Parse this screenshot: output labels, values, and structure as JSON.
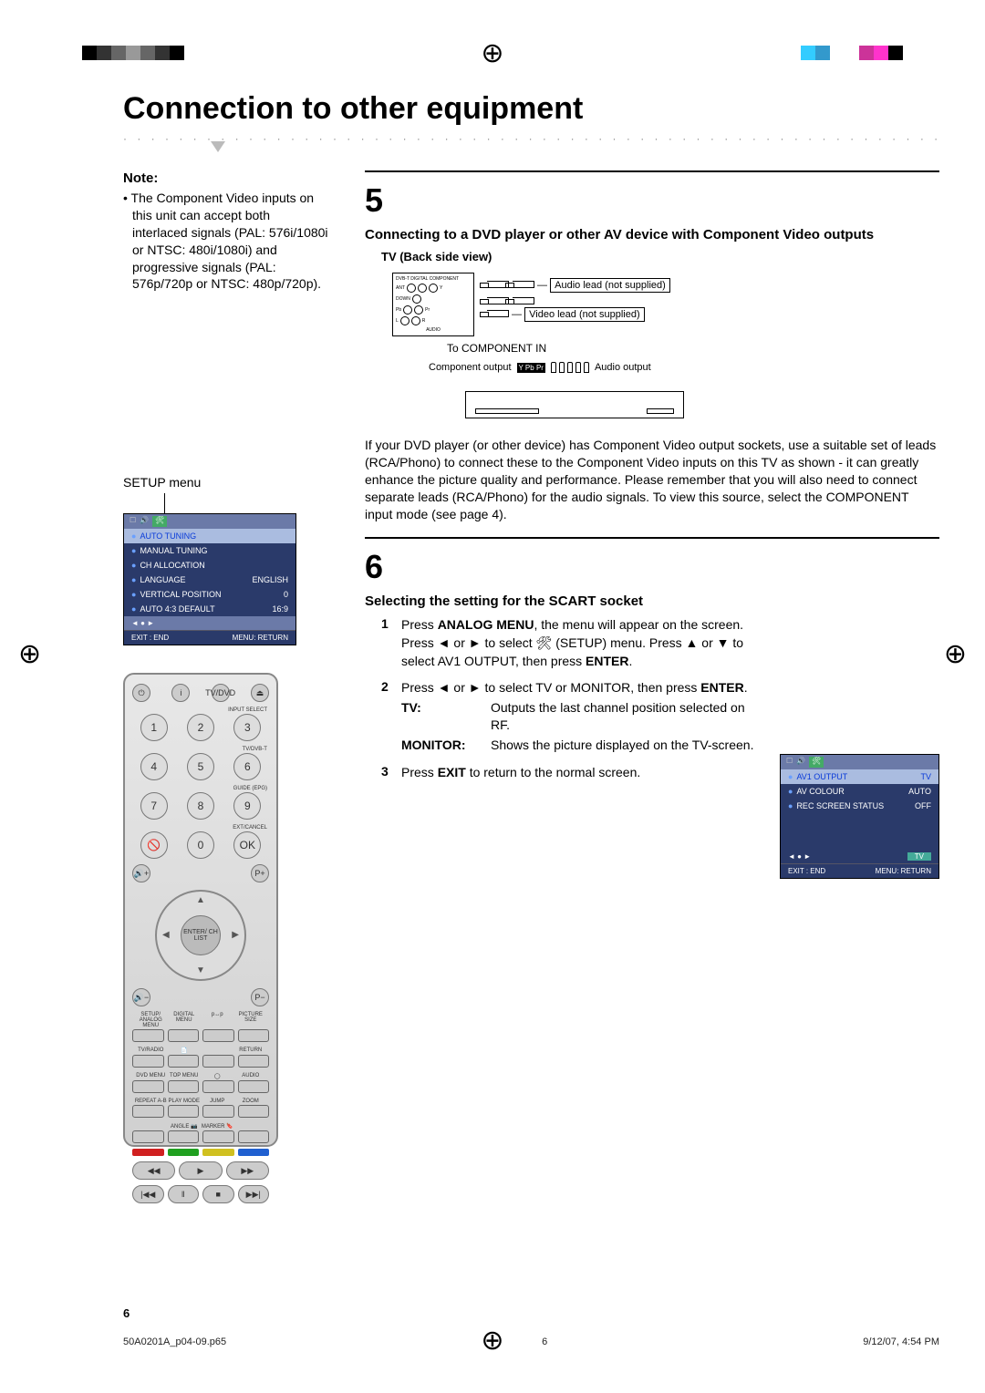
{
  "title": "Connection to other equipment",
  "note_head": "Note:",
  "note_body": "• The Component Video inputs on this unit can accept both interlaced signals (PAL: 576i/1080i or NTSC: 480i/1080i) and progressive signals (PAL: 576p/720p or NTSC: 480p/720p).",
  "setup_label": "SETUP menu",
  "osd1": {
    "items": [
      {
        "label": "AUTO TUNING",
        "val": ""
      },
      {
        "label": "MANUAL TUNING",
        "val": ""
      },
      {
        "label": "CH ALLOCATION",
        "val": ""
      },
      {
        "label": "LANGUAGE",
        "val": "ENGLISH"
      },
      {
        "label": "VERTICAL POSITION",
        "val": "0"
      },
      {
        "label": "AUTO 4:3 DEFAULT",
        "val": "16:9"
      }
    ],
    "ctrl": "◄ ● ►",
    "footer_l": "EXIT : END",
    "footer_r": "MENU: RETURN"
  },
  "section5": {
    "num": "5",
    "head": "Connecting to a DVD player or other AV device with Component Video outputs",
    "sub": "TV (Back side view)",
    "labels": {
      "dvb": "DVB-T DIGITAL COMPONENT",
      "audio_lead": "Audio lead (not supplied)",
      "video_lead": "Video lead (not supplied)",
      "to_comp": "To COMPONENT IN",
      "comp_out": "Component output",
      "aud_out": "Audio output",
      "ypbpr": "Y Pb Pr"
    },
    "para": "If your DVD player (or other device) has Component Video output sockets, use a suitable set of leads (RCA/Phono) to connect these to the Component Video inputs on this TV as shown - it can greatly enhance the picture quality and performance. Please remember that you will also need to connect separate leads (RCA/Phono) for the audio signals. To view this source, select the COMPONENT input mode (see page 4)."
  },
  "section6": {
    "num": "6",
    "head": "Selecting the setting for the SCART socket",
    "steps": [
      {
        "n": "1",
        "body_parts": [
          "Press ",
          " ANALOG MENU",
          ", the menu will appear on the screen. Press ◄ or ► to select 🛠 (SETUP) menu. Press ▲ or ▼ to select AV1 OUTPUT, then press ",
          "ENTER",
          "."
        ]
      },
      {
        "n": "2",
        "body_parts": [
          "Press ◄ or ► to select TV or MONITOR, then press ",
          "ENTER",
          "."
        ],
        "defs": [
          {
            "term": "TV:",
            "d": "Outputs the last channel position selected on RF."
          },
          {
            "term": "MONITOR:",
            "d": "Shows the picture displayed on the TV-screen."
          }
        ]
      },
      {
        "n": "3",
        "body_parts": [
          "Press ",
          "EXIT",
          " to return to the normal screen."
        ]
      }
    ]
  },
  "osd2": {
    "items": [
      {
        "label": "AV1 OUTPUT",
        "val": "TV",
        "sel": true
      },
      {
        "label": "AV COLOUR",
        "val": "AUTO"
      },
      {
        "label": "REC SCREEN STATUS",
        "val": "OFF"
      }
    ],
    "ctrl_l": "◄ ● ►",
    "ctrl_r": "TV",
    "footer_l": "EXIT : END",
    "footer_r": "MENU: RETURN"
  },
  "remote": {
    "top_labels": [
      "⏻",
      "i",
      "TV/DVD",
      "⏏"
    ],
    "nums": [
      [
        "1",
        "2",
        "3"
      ],
      [
        "4",
        "5",
        "6"
      ],
      [
        "7",
        "8",
        "9"
      ],
      [
        "🚫",
        "0",
        "OK"
      ]
    ],
    "right_labels": [
      "INPUT SELECT",
      "TV/DVB-T",
      "GUIDE (EPG)",
      "EXT/CANCEL"
    ],
    "center": "ENTER/\nCH LIST",
    "label_rows": [
      [
        "SETUP/\nANALOG MENU",
        "DIGITAL\nMENU",
        "p↔p",
        "PICTURE\nSIZE"
      ],
      [
        "TV/RADIO",
        "📄",
        "",
        "RETURN"
      ],
      [
        "DVD MENU",
        "TOP MENU",
        "◯",
        "AUDIO"
      ],
      [
        "REPEAT A-B",
        "PLAY MODE",
        "JUMP",
        "ZOOM"
      ],
      [
        "",
        "ANGLE\n📷",
        "MARKER\n🔖",
        ""
      ]
    ],
    "color_btns": [
      "#d02020",
      "#20a020",
      "#d0c020",
      "#2060d0"
    ],
    "transport1": [
      "◀◀",
      "▶",
      "▶▶"
    ],
    "transport2": [
      "|◀◀",
      "‖",
      "■",
      "▶▶|"
    ]
  },
  "page_num": "6",
  "footer": {
    "file": "50A0201A_p04-09.p65",
    "page": "6",
    "ts": "9/12/07, 4:54 PM"
  },
  "crop_colors": [
    "#000",
    "#333",
    "#666",
    "#999",
    "#666",
    "#333",
    "#000"
  ],
  "crop_colors_r": [
    "#3cf",
    "#39c",
    "#fff",
    "#fff",
    "#c39",
    "#f3c",
    "#000"
  ]
}
